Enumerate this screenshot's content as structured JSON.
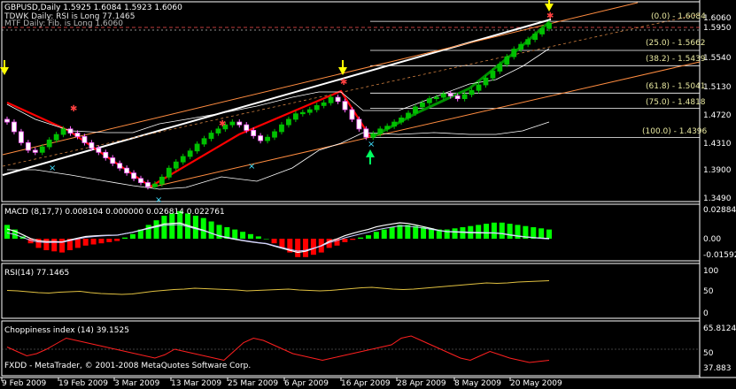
{
  "main": {
    "symbol_label": "GBPUSD,Daily  1.5925 1.6084 1.5923 1.6060",
    "info_line1": "TDWK Daily: RSI is Long 77.1465",
    "info_line2": "MTF Daily: Fib. is Long 1.6060",
    "price_ticks": [
      "1.6060",
      "1.5950",
      "1.5540",
      "1.5130",
      "1.4720",
      "1.4310",
      "1.3900",
      "1.3490"
    ],
    "fib_levels": [
      {
        "label": "(0.0) - 1.6084",
        "value": 1.6084
      },
      {
        "label": "(25.0) - 1.5662",
        "value": 1.5662
      },
      {
        "label": "(38.2) - 1.5439",
        "value": 1.5439
      },
      {
        "label": "(61.8) - 1.5041",
        "value": 1.5041
      },
      {
        "label": "(75.0) - 1.4818",
        "value": 1.4818
      },
      {
        "label": "(100.0) - 1.4396",
        "value": 1.4396
      }
    ]
  },
  "macd": {
    "label": "MACD (8,17,7) 0.008104 0.000000 0.026814 0.022761",
    "ticks": [
      "0.028844",
      "0.00",
      "-0.01592"
    ]
  },
  "rsi": {
    "label": "RSI(14) 77.1465",
    "ticks": [
      "100",
      "50",
      "0"
    ]
  },
  "chop": {
    "label": "Choppiness index (14) 39.1525",
    "ticks": [
      "65.8124",
      "50",
      "37.883"
    ]
  },
  "footer": "FXDD - MetaTrader, © 2001-2008 MetaQuotes Software Corp.",
  "date_labels": [
    "9 Feb 2009",
    "19 Feb 2009",
    "3 Mar 2009",
    "13 Mar 2009",
    "25 Mar 2009",
    "6 Apr 2009",
    "16 Apr 2009",
    "28 Apr 2009",
    "8 May 2009",
    "20 May 2009"
  ],
  "colors": {
    "bull": "#00ff00",
    "bear": "#ff0000",
    "candle_up": "#00c000",
    "candle_down": "#ffffff",
    "macd_line": "#ffffff",
    "signal_line": "#c8c8ff",
    "rsi": "#e0c040",
    "chop": "#ff2020"
  },
  "chart_data": {
    "type": "candlestick",
    "title": "GBPUSD,Daily",
    "ylim": [
      1.349,
      1.606
    ],
    "closes": [
      1.462,
      1.448,
      1.432,
      1.421,
      1.418,
      1.426,
      1.436,
      1.444,
      1.452,
      1.446,
      1.441,
      1.432,
      1.424,
      1.418,
      1.41,
      1.402,
      1.395,
      1.388,
      1.38,
      1.374,
      1.368,
      1.372,
      1.382,
      1.395,
      1.404,
      1.412,
      1.42,
      1.43,
      1.438,
      1.446,
      1.452,
      1.458,
      1.462,
      1.458,
      1.45,
      1.442,
      1.435,
      1.44,
      1.448,
      1.458,
      1.466,
      1.474,
      1.476,
      1.48,
      1.486,
      1.49,
      1.498,
      1.492,
      1.48,
      1.466,
      1.452,
      1.44,
      1.445,
      1.452,
      1.456,
      1.462,
      1.468,
      1.475,
      1.484,
      1.49,
      1.496,
      1.498,
      1.503,
      1.5,
      1.496,
      1.502,
      1.508,
      1.516,
      1.526,
      1.536,
      1.546,
      1.557,
      1.568,
      1.575,
      1.582,
      1.59,
      1.598,
      1.606
    ],
    "macd_hist": [
      0.012,
      0.008,
      0.002,
      -0.004,
      -0.008,
      -0.01,
      -0.011,
      -0.012,
      -0.01,
      -0.008,
      -0.006,
      -0.005,
      -0.004,
      -0.003,
      -0.002,
      0.001,
      0.004,
      0.008,
      0.012,
      0.016,
      0.02,
      0.022,
      0.024,
      0.022,
      0.02,
      0.018,
      0.015,
      0.012,
      0.01,
      0.008,
      0.006,
      0.004,
      0.002,
      0.0,
      -0.004,
      -0.008,
      -0.012,
      -0.016,
      -0.016,
      -0.014,
      -0.012,
      -0.008,
      -0.006,
      -0.003,
      -0.001,
      0.001,
      0.003,
      0.006,
      0.008,
      0.01,
      0.012,
      0.012,
      0.011,
      0.01,
      0.009,
      0.008,
      0.008,
      0.009,
      0.01,
      0.011,
      0.012,
      0.013,
      0.014,
      0.014,
      0.013,
      0.012,
      0.011,
      0.01,
      0.009,
      0.008
    ],
    "rsi": [
      55,
      54,
      52,
      50,
      49,
      51,
      52,
      53,
      50,
      48,
      47,
      46,
      47,
      50,
      53,
      55,
      57,
      58,
      60,
      59,
      58,
      57,
      56,
      54,
      55,
      56,
      57,
      58,
      56,
      55,
      54,
      55,
      57,
      59,
      61,
      62,
      60,
      58,
      57,
      58,
      60,
      62,
      64,
      66,
      68,
      70,
      72,
      71,
      72,
      74,
      75,
      76,
      77
    ],
    "chop": [
      52,
      48,
      44,
      46,
      50,
      55,
      60,
      58,
      56,
      54,
      52,
      50,
      48,
      46,
      44,
      42,
      45,
      50,
      48,
      46,
      44,
      42,
      40,
      48,
      56,
      60,
      58,
      54,
      50,
      46,
      44,
      42,
      40,
      42,
      44,
      46,
      48,
      50,
      52,
      54,
      60,
      62,
      58,
      54,
      50,
      46,
      42,
      40,
      44,
      48,
      45,
      42,
      40,
      38,
      39,
      40
    ]
  }
}
